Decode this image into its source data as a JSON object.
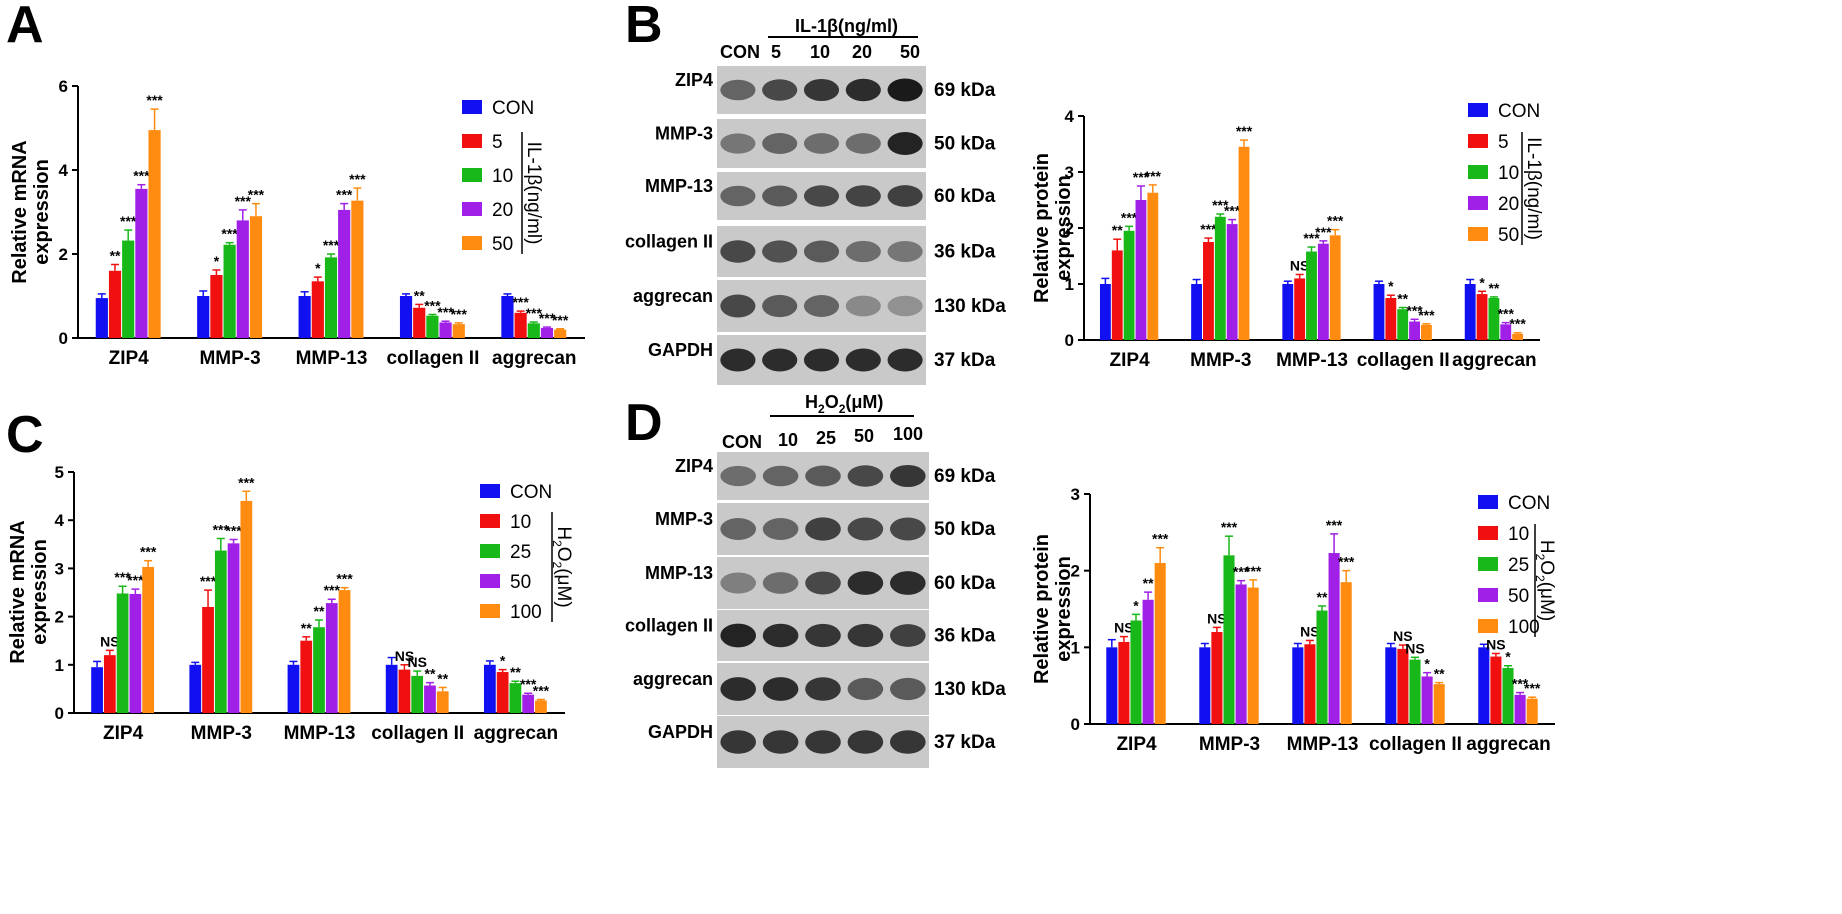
{
  "panels": [
    "A",
    "B",
    "C",
    "D"
  ],
  "blots": {
    "B": {
      "condition": "IL-1β(ng/ml)",
      "lanes": [
        "CON",
        "5",
        "10",
        "20",
        "50"
      ],
      "proteins": [
        "ZIP4",
        "MMP-3",
        "MMP-13",
        "collagen II",
        "aggrecan",
        "GAPDH"
      ],
      "sizes": [
        "69 kDa",
        "50 kDa",
        "60 kDa",
        "36 kDa",
        "130 kDa",
        "37 kDa"
      ]
    },
    "D": {
      "condition_main": "H",
      "condition_sub": "2",
      "condition_mid": "O",
      "condition_sub2": "2",
      "condition_unit": "(μM)",
      "lanes": [
        "CON",
        "10",
        "25",
        "50",
        "100"
      ],
      "proteins": [
        "ZIP4",
        "MMP-3",
        "MMP-13",
        "collagen II",
        "aggrecan",
        "GAPDH"
      ],
      "sizes": [
        "69 kDa",
        "50 kDa",
        "60 kDa",
        "36 kDa",
        "130 kDa",
        "37 kDa"
      ]
    }
  },
  "colors": {
    "CON": "#1010f0",
    "s1": "#f01010",
    "s2": "#18b818",
    "s3": "#a020e8",
    "s4": "#ff8c10"
  },
  "chart_data": [
    {
      "panel": "A",
      "type": "bar",
      "ylabel": "Relative mRNA expression",
      "ylim": [
        0,
        6
      ],
      "yticks": [
        0,
        2,
        4,
        6
      ],
      "categories": [
        "ZIP4",
        "MMP-3",
        "MMP-13",
        "collagen II",
        "aggrecan"
      ],
      "legend_title": "IL-1β(ng/ml)",
      "series": [
        {
          "name": "CON",
          "values": [
            0.95,
            1.0,
            1.0,
            1.0,
            1.0
          ],
          "err": [
            0.1,
            0.12,
            0.1,
            0.05,
            0.05
          ]
        },
        {
          "name": "5",
          "values": [
            1.6,
            1.5,
            1.35,
            0.72,
            0.6
          ],
          "err": [
            0.15,
            0.12,
            0.1,
            0.08,
            0.04
          ]
        },
        {
          "name": "10",
          "values": [
            2.32,
            2.22,
            1.92,
            0.53,
            0.35
          ],
          "err": [
            0.25,
            0.05,
            0.08,
            0.03,
            0.03
          ]
        },
        {
          "name": "20",
          "values": [
            3.55,
            2.8,
            3.05,
            0.37,
            0.24
          ],
          "err": [
            0.1,
            0.25,
            0.15,
            0.03,
            0.02
          ]
        },
        {
          "name": "50",
          "values": [
            4.95,
            2.9,
            3.27,
            0.33,
            0.2
          ],
          "err": [
            0.5,
            0.3,
            0.3,
            0.03,
            0.02
          ]
        }
      ],
      "sig": [
        [
          "",
          "",
          "",
          "",
          ""
        ],
        [
          "**",
          "*",
          "*",
          "**",
          "***"
        ],
        [
          "***",
          "***",
          "***",
          "***",
          "***"
        ],
        [
          "***",
          "***",
          "***",
          "***",
          "***"
        ],
        [
          "***",
          "***",
          "***",
          "***",
          "***"
        ]
      ]
    },
    {
      "panel": "B",
      "type": "bar",
      "ylabel": "Relative protein expression",
      "ylim": [
        0,
        4
      ],
      "yticks": [
        0,
        1,
        2,
        3,
        4
      ],
      "categories": [
        "ZIP4",
        "MMP-3",
        "MMP-13",
        "collagen II",
        "aggrecan"
      ],
      "legend_title": "IL-1β(ng/ml)",
      "series": [
        {
          "name": "CON",
          "values": [
            1.0,
            1.0,
            1.0,
            1.0,
            1.0
          ],
          "err": [
            0.1,
            0.08,
            0.05,
            0.05,
            0.08
          ]
        },
        {
          "name": "5",
          "values": [
            1.6,
            1.75,
            1.1,
            0.75,
            0.82
          ],
          "err": [
            0.2,
            0.07,
            0.07,
            0.05,
            0.05
          ]
        },
        {
          "name": "10",
          "values": [
            1.95,
            2.2,
            1.58,
            0.55,
            0.75
          ],
          "err": [
            0.08,
            0.05,
            0.08,
            0.03,
            0.02
          ]
        },
        {
          "name": "20",
          "values": [
            2.5,
            2.07,
            1.72,
            0.33,
            0.28
          ],
          "err": [
            0.25,
            0.08,
            0.05,
            0.04,
            0.03
          ]
        },
        {
          "name": "50",
          "values": [
            2.63,
            3.45,
            1.87,
            0.27,
            0.11
          ],
          "err": [
            0.14,
            0.12,
            0.1,
            0.02,
            0.02
          ]
        }
      ],
      "sig": [
        [
          "",
          "",
          "",
          "",
          ""
        ],
        [
          "**",
          "***",
          "NS",
          "*",
          "*"
        ],
        [
          "***",
          "***",
          "***",
          "**",
          "**"
        ],
        [
          "***",
          "***",
          "***",
          "***",
          "***"
        ],
        [
          "***",
          "***",
          "***",
          "***",
          "***"
        ]
      ]
    },
    {
      "panel": "C",
      "type": "bar",
      "ylabel": "Relative mRNA expression",
      "ylim": [
        0,
        5
      ],
      "yticks": [
        0,
        1,
        2,
        3,
        4,
        5
      ],
      "categories": [
        "ZIP4",
        "MMP-3",
        "MMP-13",
        "collagen II",
        "aggrecan"
      ],
      "legend_title": "H2O2(μM)",
      "series": [
        {
          "name": "CON",
          "values": [
            0.95,
            1.0,
            1.0,
            1.0,
            1.0
          ],
          "err": [
            0.12,
            0.05,
            0.07,
            0.15,
            0.08
          ]
        },
        {
          "name": "10",
          "values": [
            1.2,
            2.2,
            1.5,
            0.9,
            0.85
          ],
          "err": [
            0.1,
            0.35,
            0.08,
            0.1,
            0.05
          ]
        },
        {
          "name": "25",
          "values": [
            2.48,
            3.37,
            1.78,
            0.77,
            0.62
          ],
          "err": [
            0.15,
            0.25,
            0.15,
            0.1,
            0.04
          ]
        },
        {
          "name": "50",
          "values": [
            2.47,
            3.52,
            2.28,
            0.57,
            0.38
          ],
          "err": [
            0.1,
            0.08,
            0.08,
            0.06,
            0.03
          ]
        },
        {
          "name": "100",
          "values": [
            3.03,
            4.4,
            2.55,
            0.45,
            0.26
          ],
          "err": [
            0.13,
            0.2,
            0.05,
            0.08,
            0.02
          ]
        }
      ],
      "sig": [
        [
          "",
          "",
          "",
          "",
          ""
        ],
        [
          "NS",
          "***",
          "**",
          "NS",
          "*"
        ],
        [
          "***",
          "***",
          "**",
          "NS",
          "**"
        ],
        [
          "***",
          "***",
          "***",
          "**",
          "***"
        ],
        [
          "***",
          "***",
          "***",
          "**",
          "***"
        ]
      ]
    },
    {
      "panel": "D",
      "type": "bar",
      "ylabel": "Relative protein expression",
      "ylim": [
        0,
        3
      ],
      "yticks": [
        0,
        1,
        2,
        3
      ],
      "categories": [
        "ZIP4",
        "MMP-3",
        "MMP-13",
        "collagen II",
        "aggrecan"
      ],
      "legend_title": "H2O2(μM)",
      "series": [
        {
          "name": "CON",
          "values": [
            1.0,
            1.0,
            1.0,
            1.0,
            1.0
          ],
          "err": [
            0.1,
            0.05,
            0.05,
            0.05,
            0.04
          ]
        },
        {
          "name": "10",
          "values": [
            1.07,
            1.2,
            1.04,
            0.98,
            0.88
          ],
          "err": [
            0.07,
            0.06,
            0.05,
            0.05,
            0.04
          ]
        },
        {
          "name": "25",
          "values": [
            1.35,
            2.2,
            1.48,
            0.84,
            0.73
          ],
          "err": [
            0.08,
            0.25,
            0.06,
            0.03,
            0.03
          ]
        },
        {
          "name": "50",
          "values": [
            1.62,
            1.82,
            2.23,
            0.62,
            0.38
          ],
          "err": [
            0.1,
            0.05,
            0.25,
            0.05,
            0.03
          ]
        },
        {
          "name": "100",
          "values": [
            2.1,
            1.78,
            1.85,
            0.52,
            0.33
          ],
          "err": [
            0.2,
            0.1,
            0.15,
            0.02,
            0.02
          ]
        }
      ],
      "sig": [
        [
          "",
          "",
          "",
          "",
          ""
        ],
        [
          "NS",
          "NS",
          "NS",
          "NS",
          "NS"
        ],
        [
          "*",
          "***",
          "**",
          "NS",
          "*"
        ],
        [
          "**",
          "***",
          "***",
          "*",
          "***"
        ],
        [
          "***",
          "***",
          "***",
          "**",
          "***"
        ]
      ]
    }
  ]
}
